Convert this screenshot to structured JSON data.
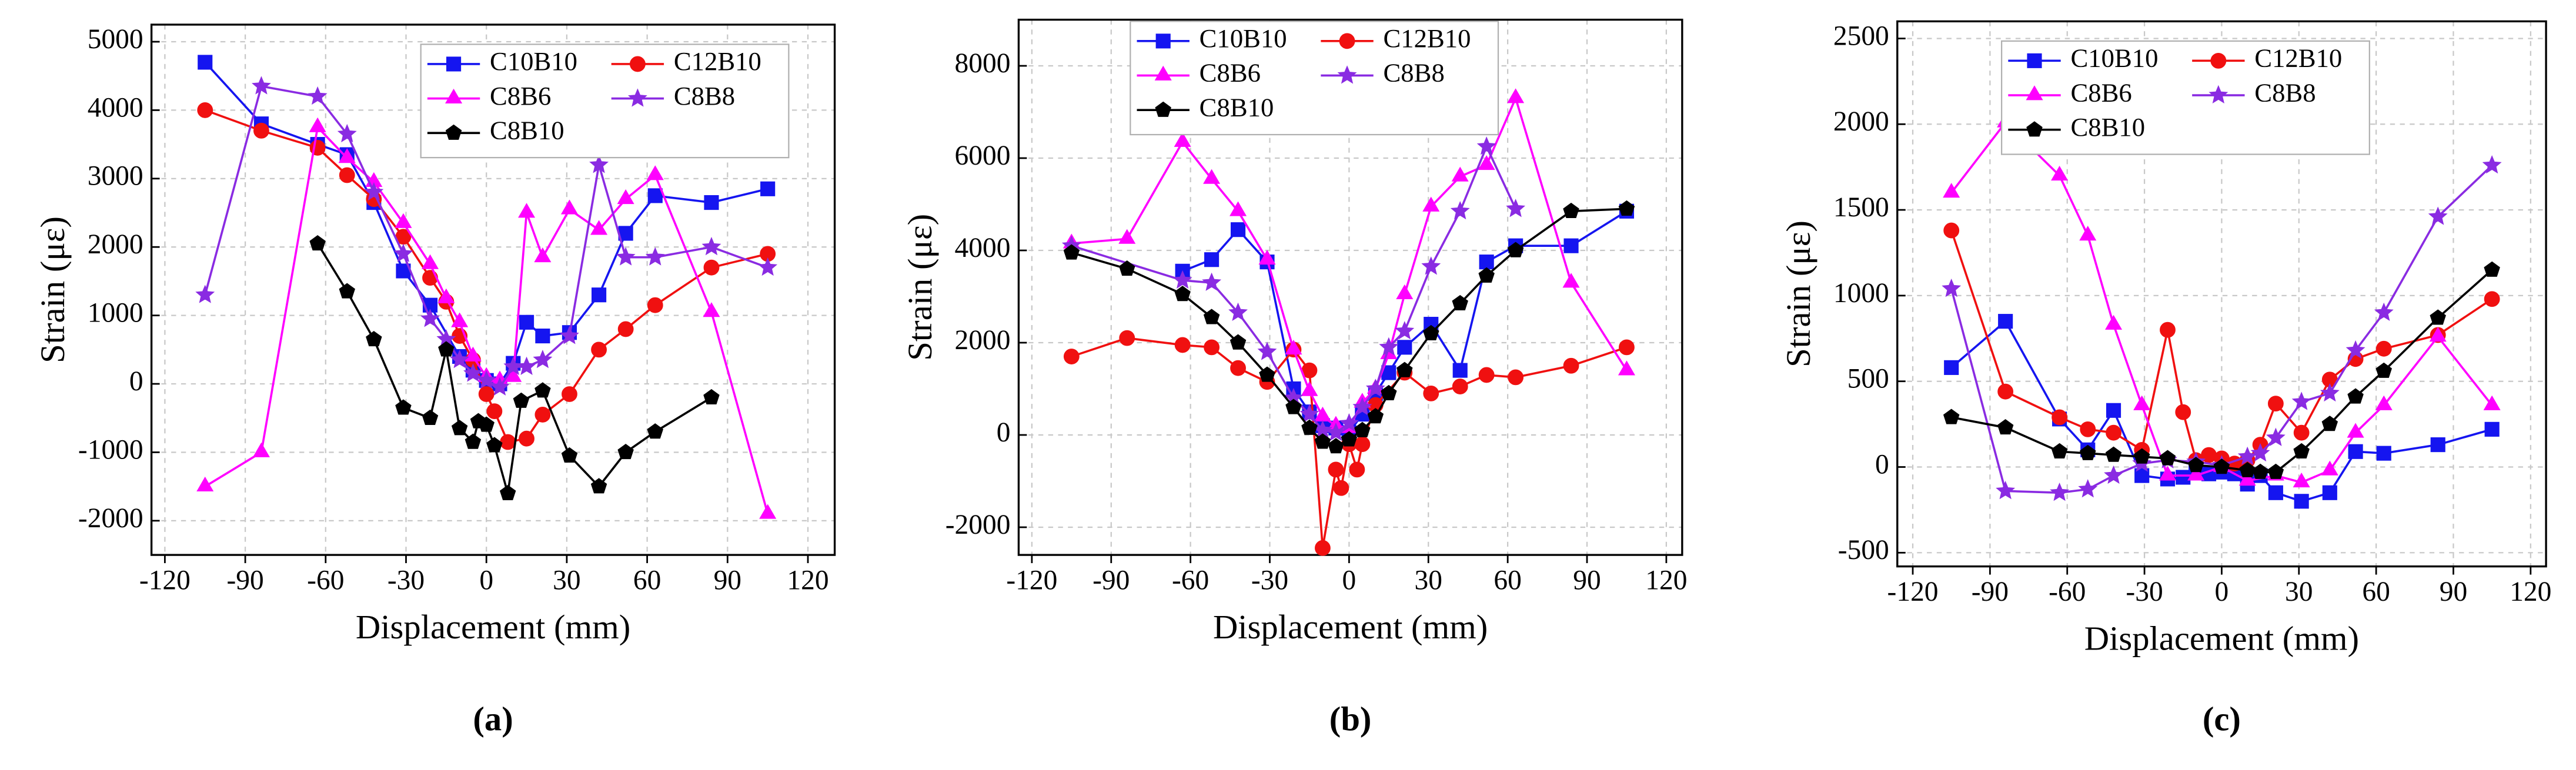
{
  "chart_data": [
    {
      "type": "line",
      "caption": "(a)",
      "xlabel": "Displacement (mm)",
      "ylabel": "Strain (με)",
      "xlim": [
        -125,
        130
      ],
      "ylim": [
        -2500,
        5250
      ],
      "xticks": [
        -120,
        -90,
        -60,
        -30,
        0,
        30,
        60,
        90,
        120
      ],
      "yticks": [
        -2000,
        -1000,
        0,
        1000,
        2000,
        3000,
        4000,
        5000
      ],
      "grid": true,
      "legend": "upper right",
      "series": [
        {
          "name": "C10B10",
          "color": "#1515f0",
          "marker": "square",
          "x": [
            -105,
            -84,
            -63,
            -52,
            -42,
            -31,
            -21,
            -10,
            -5,
            0,
            5,
            10,
            15,
            21,
            31,
            42,
            52,
            63,
            84,
            105
          ],
          "values": [
            4700,
            3800,
            3500,
            3350,
            2650,
            1650,
            1150,
            400,
            200,
            50,
            0,
            300,
            900,
            700,
            750,
            1300,
            2200,
            2750,
            2650,
            2850
          ]
        },
        {
          "name": "C12B10",
          "color": "#f01010",
          "marker": "circle",
          "x": [
            -105,
            -84,
            -63,
            -52,
            -42,
            -31,
            -21,
            -15,
            -10,
            -5,
            0,
            3,
            8,
            15,
            21,
            31,
            42,
            52,
            63,
            84,
            105
          ],
          "values": [
            4000,
            3700,
            3450,
            3050,
            2700,
            2150,
            1550,
            1200,
            700,
            350,
            -150,
            -400,
            -850,
            -800,
            -450,
            -150,
            500,
            800,
            1150,
            1700,
            1900
          ]
        },
        {
          "name": "C8B6",
          "color": "#ff00ff",
          "marker": "triangle",
          "x": [
            -105,
            -84,
            -63,
            -52,
            -42,
            -31,
            -21,
            -15,
            -10,
            -5,
            0,
            5,
            10,
            15,
            21,
            31,
            42,
            52,
            63,
            84,
            105
          ],
          "values": [
            -1500,
            -1000,
            3750,
            3300,
            2950,
            2350,
            1750,
            1250,
            900,
            400,
            100,
            50,
            100,
            2500,
            1850,
            2550,
            2250,
            2700,
            3050,
            1050,
            -1900
          ]
        },
        {
          "name": "C8B8",
          "color": "#8a2be2",
          "marker": "star",
          "x": [
            -105,
            -84,
            -63,
            -52,
            -42,
            -31,
            -21,
            -15,
            -10,
            -5,
            0,
            5,
            10,
            15,
            21,
            31,
            42,
            52,
            63,
            84,
            105
          ],
          "values": [
            1300,
            4350,
            4200,
            3650,
            2800,
            1900,
            950,
            650,
            350,
            150,
            50,
            -50,
            250,
            250,
            350,
            700,
            3200,
            1850,
            1850,
            2000,
            1700
          ]
        },
        {
          "name": "C8B10",
          "color": "#000000",
          "marker": "pentagon",
          "x": [
            -63,
            -52,
            -42,
            -31,
            -21,
            -15,
            -10,
            -5,
            -3,
            0,
            3,
            8,
            13,
            21,
            31,
            42,
            52,
            63,
            84
          ],
          "values": [
            2050,
            1350,
            650,
            -350,
            -500,
            500,
            -650,
            -850,
            -550,
            -600,
            -900,
            -1600,
            -250,
            -100,
            -1050,
            -1500,
            -1000,
            -700,
            -200
          ]
        }
      ]
    },
    {
      "type": "line",
      "caption": "(b)",
      "xlabel": "Displacement (mm)",
      "ylabel": "Strain (με)",
      "xlim": [
        -125,
        126
      ],
      "ylim": [
        -2600,
        9000
      ],
      "xticks": [
        -120,
        -90,
        -60,
        -30,
        0,
        30,
        60,
        90,
        120
      ],
      "yticks": [
        -2000,
        0,
        2000,
        4000,
        6000,
        8000
      ],
      "grid": true,
      "legend": "upper center",
      "series": [
        {
          "name": "C10B10",
          "color": "#1515f0",
          "marker": "square",
          "x": [
            -63,
            -52,
            -42,
            -31,
            -21,
            -15,
            -10,
            -5,
            0,
            5,
            10,
            15,
            21,
            31,
            42,
            52,
            63,
            84,
            105
          ],
          "values": [
            3550,
            3800,
            4450,
            3750,
            1000,
            500,
            200,
            150,
            50,
            450,
            900,
            1350,
            1900,
            2400,
            1400,
            3750,
            4100,
            4100,
            4850
          ]
        },
        {
          "name": "C12B10",
          "color": "#f01010",
          "marker": "circle",
          "x": [
            -105,
            -84,
            -63,
            -52,
            -42,
            -31,
            -21,
            -15,
            -10,
            -5,
            -3,
            0,
            3,
            5,
            10,
            21,
            31,
            42,
            52,
            63,
            84,
            105
          ],
          "values": [
            1700,
            2100,
            1950,
            1900,
            1450,
            1150,
            1850,
            1400,
            -2450,
            -750,
            -1150,
            -200,
            -750,
            -200,
            650,
            1350,
            900,
            1050,
            1300,
            1250,
            1500,
            1900
          ]
        },
        {
          "name": "C8B6",
          "color": "#ff00ff",
          "marker": "triangle",
          "x": [
            -105,
            -84,
            -63,
            -52,
            -42,
            -31,
            -21,
            -15,
            -10,
            -5,
            0,
            5,
            10,
            15,
            21,
            31,
            42,
            52,
            63,
            84,
            105
          ],
          "values": [
            4150,
            4250,
            6350,
            5550,
            4850,
            3800,
            1850,
            950,
            400,
            200,
            150,
            700,
            1000,
            1750,
            3050,
            4950,
            5600,
            5850,
            7300,
            3300,
            1400
          ]
        },
        {
          "name": "C8B8",
          "color": "#8a2be2",
          "marker": "star",
          "x": [
            -105,
            -63,
            -52,
            -42,
            -31,
            -21,
            -15,
            -10,
            -5,
            0,
            5,
            10,
            15,
            21,
            31,
            42,
            52,
            63
          ],
          "values": [
            4100,
            3350,
            3300,
            2650,
            1800,
            800,
            450,
            100,
            50,
            250,
            600,
            1000,
            1900,
            2250,
            3650,
            4850,
            6250,
            4900
          ]
        },
        {
          "name": "C8B10",
          "color": "#000000",
          "marker": "pentagon",
          "x": [
            -105,
            -84,
            -63,
            -52,
            -42,
            -31,
            -21,
            -15,
            -10,
            -5,
            0,
            5,
            10,
            15,
            21,
            31,
            42,
            52,
            63,
            84,
            105
          ],
          "values": [
            3950,
            3600,
            3050,
            2550,
            2000,
            1300,
            600,
            150,
            -150,
            -250,
            -100,
            100,
            400,
            900,
            1400,
            2200,
            2850,
            3450,
            4000,
            4850,
            4900
          ]
        }
      ]
    },
    {
      "type": "line",
      "caption": "(c)",
      "xlabel": "Displacement (mm)",
      "ylabel": "Strain (με)",
      "xlim": [
        -126,
        126
      ],
      "ylim": [
        -580,
        2600
      ],
      "xticks": [
        -120,
        -90,
        -60,
        -30,
        0,
        30,
        60,
        90,
        120
      ],
      "yticks": [
        -500,
        0,
        500,
        1000,
        1500,
        2000,
        2500
      ],
      "grid": true,
      "legend": "upper center",
      "series": [
        {
          "name": "C10B10",
          "color": "#1515f0",
          "marker": "square",
          "x": [
            -105,
            -84,
            -63,
            -52,
            -42,
            -31,
            -21,
            -15,
            -10,
            -5,
            0,
            5,
            10,
            15,
            21,
            31,
            42,
            52,
            63,
            84,
            105
          ],
          "values": [
            580,
            850,
            280,
            100,
            330,
            -50,
            -70,
            -60,
            -30,
            -40,
            -30,
            -40,
            -100,
            -50,
            -150,
            -200,
            -150,
            90,
            80,
            130,
            220
          ]
        },
        {
          "name": "C12B10",
          "color": "#f01010",
          "marker": "circle",
          "x": [
            -105,
            -84,
            -63,
            -52,
            -42,
            -31,
            -21,
            -15,
            -10,
            -5,
            0,
            5,
            10,
            15,
            21,
            31,
            42,
            52,
            63,
            84,
            105
          ],
          "values": [
            1380,
            440,
            290,
            220,
            200,
            100,
            800,
            320,
            40,
            70,
            50,
            20,
            40,
            130,
            370,
            200,
            510,
            630,
            690,
            770,
            980
          ]
        },
        {
          "name": "C8B6",
          "color": "#ff00ff",
          "marker": "triangle",
          "x": [
            -105,
            -84,
            -63,
            -52,
            -42,
            -31,
            -21,
            -10,
            0,
            10,
            21,
            31,
            42,
            52,
            63,
            84,
            105
          ],
          "values": [
            1600,
            2010,
            1700,
            1350,
            830,
            360,
            -50,
            -50,
            0,
            -80,
            -50,
            -90,
            -20,
            200,
            360,
            760,
            360
          ]
        },
        {
          "name": "C8B8",
          "color": "#8a2be2",
          "marker": "star",
          "x": [
            -105,
            -84,
            -63,
            -52,
            -42,
            -31,
            -21,
            -10,
            0,
            10,
            15,
            21,
            31,
            42,
            52,
            63,
            84,
            105
          ],
          "values": [
            1040,
            -140,
            -150,
            -130,
            -50,
            20,
            40,
            30,
            10,
            60,
            80,
            170,
            380,
            430,
            680,
            900,
            1460,
            1760
          ]
        },
        {
          "name": "C8B10",
          "color": "#000000",
          "marker": "pentagon",
          "x": [
            -105,
            -84,
            -63,
            -52,
            -42,
            -31,
            -21,
            -10,
            0,
            10,
            15,
            21,
            31,
            42,
            52,
            63,
            84,
            105
          ],
          "values": [
            290,
            230,
            90,
            80,
            70,
            60,
            50,
            10,
            0,
            -20,
            -30,
            -30,
            90,
            250,
            410,
            560,
            870,
            1150
          ]
        }
      ]
    }
  ]
}
